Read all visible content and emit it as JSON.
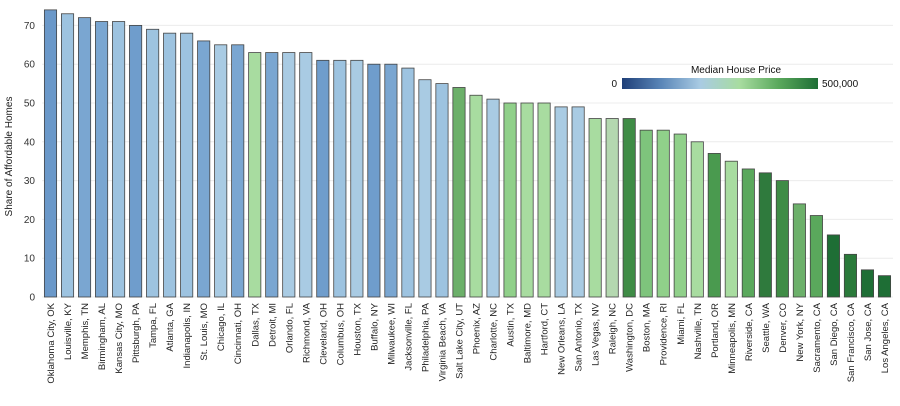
{
  "chart_data": {
    "type": "bar",
    "title": "",
    "xlabel": "",
    "ylabel": "Share of Affordable Homes",
    "ylim": [
      0,
      75
    ],
    "yticks": [
      0,
      10,
      20,
      30,
      40,
      50,
      60,
      70
    ],
    "grid": true,
    "legend": {
      "title": "Median House Price",
      "min_label": "0",
      "max_label": "500,000",
      "placement": "top-right",
      "gradient": [
        "#1f3f78",
        "#5a86b8",
        "#a9cbe3",
        "#a8dca0",
        "#5aa85c",
        "#1e6e35"
      ]
    },
    "categories": [
      "Oklahoma City, OK",
      "Louisville, KY",
      "Memphis, TN",
      "Birmingham, AL",
      "Kansas City, MO",
      "Pittsburgh, PA",
      "Tampa, FL",
      "Atlanta, GA",
      "Indianapolis, IN",
      "St. Louis, MO",
      "Chicago, IL",
      "Cincinnati, OH",
      "Dallas, TX",
      "Detroit, MI",
      "Orlando, FL",
      "Richmond, VA",
      "Cleveland, OH",
      "Columbus, OH",
      "Houston, TX",
      "Buffalo, NY",
      "Milwaukee, WI",
      "Jacksonville, FL",
      "Philadelphia, PA",
      "Virginia Beach, VA",
      "Salt Lake City, UT",
      "Phoenix, AZ",
      "Charlotte, NC",
      "Austin, TX",
      "Baltimore, MD",
      "Hartford, CT",
      "New Orleans, LA",
      "San Antonio, TX",
      "Las Vegas, NV",
      "Raleigh, NC",
      "Washington, DC",
      "Boston, MA",
      "Providence, RI",
      "Miami, FL",
      "Nashville, TN",
      "Portland, OR",
      "Minneapolis, MN",
      "Riverside, CA",
      "Seattle, WA",
      "Denver, CO",
      "New York, NY",
      "Sacramento, CA",
      "San Diego, CA",
      "San Francisco, CA",
      "San Jose, CA",
      "Los Angeles, CA"
    ],
    "values": [
      74,
      73,
      72,
      71,
      71,
      70,
      69,
      68,
      68,
      66,
      65,
      65,
      63,
      63,
      63,
      63,
      61,
      61,
      61,
      60,
      60,
      59,
      56,
      55,
      54,
      52,
      51,
      50,
      50,
      50,
      49,
      49,
      46,
      46,
      46,
      43,
      43,
      42,
      40,
      37,
      35,
      33,
      32,
      30,
      24,
      21,
      16,
      11,
      7,
      5.5
    ],
    "colors": [
      "#6a98c9",
      "#9dc3e0",
      "#7aa6d1",
      "#7aa6d1",
      "#9dc3e0",
      "#6f9dcc",
      "#9dc3e0",
      "#9dc3e0",
      "#9dc3e0",
      "#7aa6d1",
      "#a9cbe3",
      "#7aa6d1",
      "#a8dca0",
      "#7aa6d1",
      "#a9cbe3",
      "#a9cbe3",
      "#6f9dcc",
      "#9dc3e0",
      "#a9cbe3",
      "#6f9dcc",
      "#7aa6d1",
      "#9dc3e0",
      "#a9cbe3",
      "#9dc3e0",
      "#6cb06a",
      "#a8dca0",
      "#a9cbe3",
      "#90d08a",
      "#a8dca0",
      "#a8dca0",
      "#a9cbe3",
      "#a9cbe3",
      "#a8dca0",
      "#b4d8b0",
      "#3f8c46",
      "#7ec47c",
      "#90d08a",
      "#90d08a",
      "#a8dca0",
      "#4a9a4f",
      "#a8dca0",
      "#5aa85c",
      "#2f7a3d",
      "#3f8c46",
      "#6cb06a",
      "#5aa85c",
      "#1e6e35",
      "#2a7a3a",
      "#1e6e35",
      "#1e6e35"
    ]
  }
}
